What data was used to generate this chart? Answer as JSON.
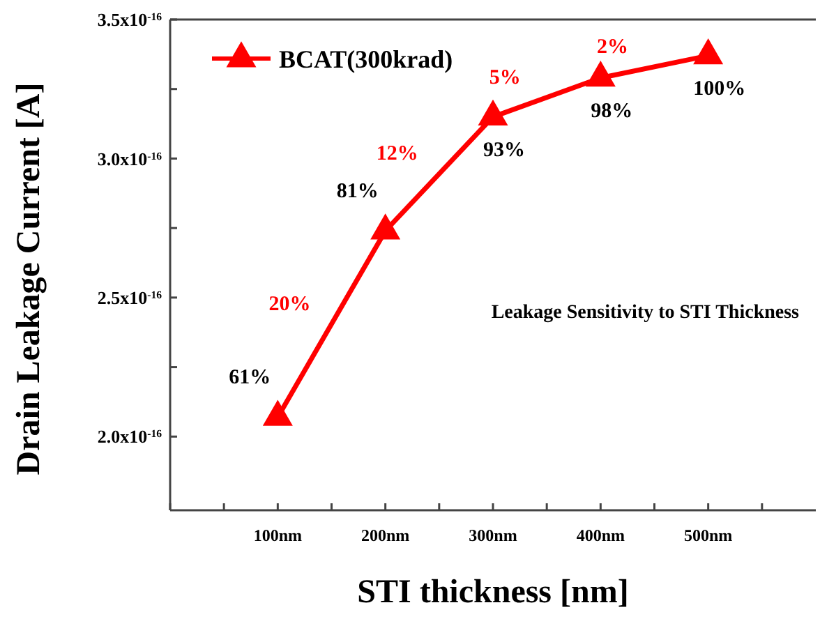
{
  "chart_data": {
    "type": "line",
    "xlabel": "STI thickness [nm]",
    "ylabel": "Drain Leakage Current [A]",
    "x": [
      100,
      200,
      300,
      400,
      500
    ],
    "series": [
      {
        "name": "BCAT(300krad)",
        "color": "#ff0000",
        "values": [
          2.07e-16,
          2.74e-16,
          3.15e-16,
          3.29e-16,
          3.37e-16
        ]
      }
    ],
    "xlim": [
      0,
      600
    ],
    "xticks": [
      {
        "value": 0,
        "label": null
      },
      {
        "value": 50,
        "label": null
      },
      {
        "value": 100,
        "label": "100nm"
      },
      {
        "value": 150,
        "label": null
      },
      {
        "value": 200,
        "label": "200nm"
      },
      {
        "value": 250,
        "label": null
      },
      {
        "value": 300,
        "label": "300nm"
      },
      {
        "value": 350,
        "label": null
      },
      {
        "value": 400,
        "label": "400nm"
      },
      {
        "value": 450,
        "label": null
      },
      {
        "value": 500,
        "label": "500nm"
      },
      {
        "value": 550,
        "label": null
      }
    ],
    "ylim": [
      1.735e-16,
      3.5e-16
    ],
    "yticks": [
      {
        "value": 2e-16,
        "label": "2.0x10$^{-16}$"
      },
      {
        "value": 2.25e-16,
        "label": null
      },
      {
        "value": 2.5e-16,
        "label": "2.5x10$^{-16}$"
      },
      {
        "value": 2.75e-16,
        "label": null
      },
      {
        "value": 3e-16,
        "label": "3.0x10$^{-16}$"
      },
      {
        "value": 3.25e-16,
        "label": null
      },
      {
        "value": 3.5e-16,
        "label": "3.5x10$^{-16}$"
      }
    ],
    "marker": "triangle",
    "grid": false,
    "legend": "top left",
    "annotations": [
      {
        "text": "61%",
        "x": 100,
        "y": 2.07e-16
      },
      {
        "text": "81%",
        "x": 200,
        "y": 2.74e-16
      },
      {
        "text": "93%",
        "x": 300,
        "y": 3.15e-16
      },
      {
        "text": "98%",
        "x": 400,
        "y": 3.29e-16
      },
      {
        "text": "100%",
        "x": 500,
        "y": 3.37e-16
      },
      {
        "text": "20%",
        "x": 150,
        "y": 2.405e-16
      },
      {
        "text": "12%",
        "x": 250,
        "y": 2.945e-16
      },
      {
        "text": "5%",
        "x": 350,
        "y": 3.22e-16
      },
      {
        "text": "2%",
        "x": 450,
        "y": 3.33e-16
      },
      "Leakage Sensitivity to STI Thickness"
    ]
  }
}
